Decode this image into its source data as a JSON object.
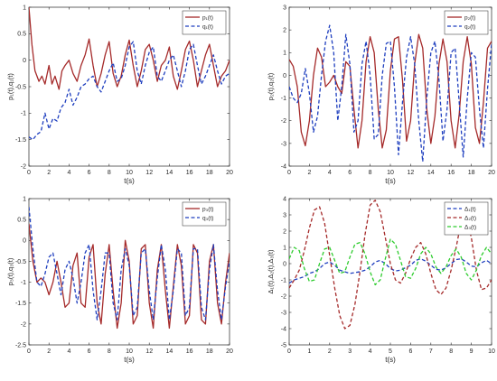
{
  "chart_data": [
    {
      "type": "line",
      "xlabel": "t(s)",
      "ylabel": "p₁(t),q₁(t)",
      "xlim": [
        0,
        20
      ],
      "ylim": [
        -2,
        1
      ],
      "xticks": [
        "0",
        "2",
        "4",
        "6",
        "8",
        "10",
        "12",
        "14",
        "16",
        "18",
        "20"
      ],
      "yticks": [
        "-2",
        "-1.5",
        "-1",
        "-0.5",
        "0",
        "0.5",
        "1"
      ],
      "legend_position": "top-right",
      "series": [
        {
          "name": "p₁(t)",
          "color": "#a52a2a",
          "dash": "solid",
          "x": [
            0,
            0.3,
            0.6,
            1,
            1.3,
            1.6,
            2,
            2.3,
            2.6,
            3,
            3.3,
            3.6,
            4,
            4.4,
            4.8,
            5.2,
            5.6,
            6,
            6.4,
            6.8,
            7.2,
            7.6,
            8,
            8.4,
            8.8,
            9.2,
            9.6,
            10,
            10.4,
            10.8,
            11.2,
            11.6,
            12,
            12.4,
            12.8,
            13.2,
            13.6,
            14,
            14.4,
            14.8,
            15.2,
            15.6,
            16,
            16.4,
            16.8,
            17.2,
            17.6,
            18,
            18.4,
            18.8,
            19.2,
            19.6,
            20
          ],
          "y": [
            1.0,
            0.3,
            -0.2,
            -0.4,
            -0.3,
            -0.45,
            -0.1,
            -0.45,
            -0.3,
            -0.55,
            -0.2,
            -0.1,
            0.0,
            -0.25,
            -0.4,
            -0.1,
            0.1,
            0.4,
            -0.1,
            -0.5,
            -0.25,
            0.1,
            0.35,
            -0.25,
            -0.5,
            -0.3,
            0.1,
            0.38,
            -0.1,
            -0.5,
            -0.2,
            0.2,
            0.3,
            0.0,
            -0.4,
            -0.1,
            0.0,
            0.25,
            -0.3,
            -0.55,
            -0.2,
            0.2,
            0.36,
            0.0,
            -0.5,
            -0.2,
            0.1,
            0.3,
            -0.1,
            -0.5,
            -0.3,
            -0.2,
            0.0
          ]
        },
        {
          "name": "q₁(t)",
          "color": "#1f3fbf",
          "dash": "dashed",
          "x": [
            0,
            0.4,
            0.8,
            1.2,
            1.6,
            2,
            2.4,
            2.8,
            3.2,
            3.6,
            4,
            4.4,
            4.8,
            5.2,
            5.6,
            6,
            6.4,
            6.8,
            7.2,
            7.6,
            8,
            8.4,
            8.8,
            9.2,
            9.6,
            10,
            10.4,
            10.8,
            11.2,
            11.6,
            12,
            12.4,
            12.8,
            13.2,
            13.6,
            14,
            14.4,
            14.8,
            15.2,
            15.6,
            16,
            16.4,
            16.8,
            17.2,
            17.6,
            18,
            18.4,
            18.8,
            19.2,
            19.6,
            20
          ],
          "y": [
            -1.45,
            -1.5,
            -1.4,
            -1.35,
            -1.0,
            -1.3,
            -1.1,
            -1.15,
            -0.9,
            -0.8,
            -0.55,
            -0.85,
            -0.7,
            -0.5,
            -0.45,
            -0.35,
            -0.3,
            -0.5,
            -0.6,
            -0.4,
            -0.2,
            -0.05,
            -0.4,
            -0.35,
            -0.1,
            0.25,
            0.35,
            -0.2,
            -0.45,
            -0.1,
            0.15,
            0.25,
            -0.3,
            -0.4,
            -0.2,
            0.0,
            0.1,
            -0.2,
            -0.5,
            -0.2,
            0.2,
            0.3,
            -0.1,
            -0.45,
            -0.3,
            -0.1,
            0.1,
            -0.2,
            -0.45,
            -0.3,
            -0.25
          ]
        }
      ]
    },
    {
      "type": "line",
      "xlabel": "t(s)",
      "ylabel": "p₂(t),q₂(t)",
      "xlim": [
        0,
        20
      ],
      "ylim": [
        -4,
        3
      ],
      "xticks": [
        "0",
        "2",
        "4",
        "6",
        "8",
        "10",
        "12",
        "14",
        "16",
        "18",
        "20"
      ],
      "yticks": [
        "-4",
        "-3",
        "-2",
        "-1",
        "0",
        "1",
        "2",
        "3"
      ],
      "legend_position": "top-right",
      "series": [
        {
          "name": "p₂(t)",
          "color": "#a52a2a",
          "dash": "solid",
          "x": [
            0,
            0.4,
            0.8,
            1.2,
            1.6,
            2,
            2.4,
            2.8,
            3.2,
            3.6,
            4,
            4.4,
            4.8,
            5.2,
            5.6,
            6,
            6.4,
            6.8,
            7.2,
            7.6,
            8,
            8.4,
            8.8,
            9.2,
            9.6,
            10,
            10.4,
            10.8,
            11.2,
            11.6,
            12,
            12.4,
            12.8,
            13.2,
            13.6,
            14,
            14.4,
            14.8,
            15.2,
            15.6,
            16,
            16.4,
            16.8,
            17.2,
            17.6,
            18,
            18.4,
            18.8,
            19.2,
            19.6,
            20
          ],
          "y": [
            0.7,
            0.4,
            -0.5,
            -2.5,
            -3.1,
            -2.0,
            0.0,
            1.2,
            0.8,
            -0.5,
            -0.3,
            0.0,
            -0.5,
            -0.8,
            0.6,
            0.4,
            -1.5,
            -3.2,
            -2.0,
            0.6,
            1.7,
            1.0,
            -1.5,
            -3.2,
            -2.4,
            0.2,
            1.6,
            1.7,
            -0.2,
            -2.9,
            -2.0,
            0.5,
            1.8,
            1.2,
            -1.5,
            -3.0,
            -1.8,
            0.5,
            1.6,
            0.6,
            -2.0,
            -3.2,
            -1.7,
            0.6,
            1.7,
            0.5,
            -2.3,
            -3.0,
            -1.2,
            1.2,
            1.5
          ]
        },
        {
          "name": "q₂(t)",
          "color": "#1f3fbf",
          "dash": "dashed",
          "x": [
            0,
            0.4,
            0.8,
            1.2,
            1.6,
            2,
            2.4,
            2.8,
            3.2,
            3.6,
            4,
            4.4,
            4.8,
            5.2,
            5.6,
            6,
            6.4,
            6.8,
            7.2,
            7.6,
            8,
            8.4,
            8.8,
            9.2,
            9.6,
            10,
            10.4,
            10.8,
            11.2,
            11.6,
            12,
            12.4,
            12.8,
            13.2,
            13.6,
            14,
            14.4,
            14.8,
            15.2,
            15.6,
            16,
            16.4,
            16.8,
            17.2,
            17.6,
            18,
            18.4,
            18.8,
            19.2,
            19.6,
            20
          ],
          "y": [
            -0.5,
            -1.0,
            -1.2,
            -0.8,
            0.3,
            -0.8,
            -2.5,
            -1.8,
            0.0,
            1.5,
            2.2,
            1.0,
            -2.0,
            -0.5,
            1.8,
            0.5,
            -2.5,
            -2.0,
            0.5,
            1.5,
            0.0,
            -2.8,
            -2.6,
            0.0,
            1.4,
            1.5,
            -0.5,
            -3.5,
            -1.2,
            0.8,
            1.7,
            0.5,
            -2.0,
            -3.8,
            -1.0,
            1.0,
            1.5,
            -0.2,
            -2.9,
            -1.5,
            1.0,
            1.2,
            -1.2,
            -3.6,
            -1.0,
            1.0,
            0.8,
            -1.5,
            -3.2,
            -0.6,
            1.4
          ]
        }
      ]
    },
    {
      "type": "line",
      "xlabel": "t(s)",
      "ylabel": "p₃(t),q₃(t)",
      "xlim": [
        0,
        20
      ],
      "ylim": [
        -2.5,
        1
      ],
      "xticks": [
        "0",
        "2",
        "4",
        "6",
        "8",
        "10",
        "12",
        "14",
        "16",
        "18",
        "20"
      ],
      "yticks": [
        "-2.5",
        "-2",
        "-1.5",
        "-1",
        "-0.5",
        "0",
        "0.5",
        "1"
      ],
      "legend_position": "top-right",
      "series": [
        {
          "name": "p₃(t)",
          "color": "#a52a2a",
          "dash": "solid",
          "x": [
            0,
            0.4,
            0.8,
            1.2,
            1.6,
            2,
            2.4,
            2.8,
            3.2,
            3.6,
            4,
            4.4,
            4.8,
            5.2,
            5.6,
            6,
            6.4,
            6.8,
            7.2,
            7.6,
            8,
            8.4,
            8.8,
            9.2,
            9.6,
            10,
            10.4,
            10.8,
            11.2,
            11.6,
            12,
            12.4,
            12.8,
            13.2,
            13.6,
            14,
            14.4,
            14.8,
            15.2,
            15.6,
            16,
            16.4,
            16.8,
            17.2,
            17.6,
            18,
            18.4,
            18.8,
            19.2,
            19.6,
            20
          ],
          "y": [
            0.4,
            -0.5,
            -1.0,
            -0.9,
            -1.0,
            -1.3,
            -1.0,
            -0.5,
            -1.0,
            -1.6,
            -1.5,
            -0.6,
            -0.3,
            -1.5,
            -1.6,
            -0.4,
            -0.1,
            -1.5,
            -2.0,
            -0.8,
            -0.1,
            -1.2,
            -2.1,
            -1.5,
            0.0,
            -0.5,
            -2.0,
            -1.8,
            -0.2,
            -0.1,
            -1.5,
            -2.1,
            -0.7,
            -0.1,
            -1.2,
            -2.1,
            -1.1,
            -0.1,
            -0.6,
            -2.0,
            -1.8,
            -0.1,
            -0.3,
            -1.9,
            -2.0,
            -0.5,
            -0.1,
            -1.5,
            -2.0,
            -1.0,
            -0.3
          ]
        },
        {
          "name": "q₃(t)",
          "color": "#1f3fbf",
          "dash": "dashed",
          "x": [
            0,
            0.4,
            0.8,
            1.2,
            1.6,
            2,
            2.4,
            2.8,
            3.2,
            3.6,
            4,
            4.4,
            4.8,
            5.2,
            5.6,
            6,
            6.4,
            6.8,
            7.2,
            7.6,
            8,
            8.4,
            8.8,
            9.2,
            9.6,
            10,
            10.4,
            10.8,
            11.2,
            11.6,
            12,
            12.4,
            12.8,
            13.2,
            13.6,
            14,
            14.4,
            14.8,
            15.2,
            15.6,
            16,
            16.4,
            16.8,
            17.2,
            17.6,
            18,
            18.4,
            18.8,
            19.2,
            19.6,
            20
          ],
          "y": [
            0.8,
            -0.2,
            -1.0,
            -1.1,
            -0.8,
            -0.4,
            -0.3,
            -0.8,
            -1.3,
            -0.7,
            -0.5,
            -0.9,
            -1.5,
            -1.0,
            -0.3,
            -0.1,
            -1.2,
            -1.9,
            -1.2,
            -0.3,
            -0.3,
            -1.5,
            -1.9,
            -0.7,
            -0.2,
            -0.6,
            -1.8,
            -1.6,
            -0.3,
            -0.2,
            -1.2,
            -1.9,
            -0.9,
            -0.1,
            -0.7,
            -1.9,
            -1.2,
            -0.2,
            -0.3,
            -1.8,
            -1.6,
            -0.2,
            -0.2,
            -1.6,
            -1.9,
            -0.7,
            -0.1,
            -1.2,
            -1.9,
            -1.1,
            -0.5
          ]
        }
      ]
    },
    {
      "type": "line",
      "xlabel": "t(s)",
      "ylabel": "Δ₁(t),Δ₂(t),Δ₃(t)",
      "xlim": [
        0,
        10
      ],
      "ylim": [
        -5,
        4
      ],
      "xticks": [
        "0",
        "1",
        "2",
        "3",
        "4",
        "5",
        "6",
        "7",
        "8",
        "9",
        "10"
      ],
      "yticks": [
        "-5",
        "-4",
        "-3",
        "-2",
        "-1",
        "0",
        "1",
        "2",
        "3",
        "4"
      ],
      "legend_position": "top-right",
      "series": [
        {
          "name": "Δ₁(t)",
          "color": "#1f3fbf",
          "dash": "dashed",
          "x": [
            0,
            0.25,
            0.5,
            0.75,
            1,
            1.25,
            1.5,
            1.75,
            2,
            2.25,
            2.5,
            2.75,
            3,
            3.25,
            3.5,
            3.75,
            4,
            4.25,
            4.5,
            4.75,
            5,
            5.25,
            5.5,
            5.75,
            6,
            6.25,
            6.5,
            6.75,
            7,
            7.25,
            7.5,
            7.75,
            8,
            8.25,
            8.5,
            8.75,
            9,
            9.25,
            9.5,
            9.75,
            10
          ],
          "y": [
            -1.2,
            -1.0,
            -0.9,
            -0.8,
            -0.6,
            -0.5,
            -0.3,
            0.0,
            0.1,
            -0.1,
            -0.4,
            -0.5,
            -0.6,
            -0.55,
            -0.5,
            -0.4,
            -0.2,
            0.1,
            0.2,
            0.0,
            -0.3,
            -0.45,
            -0.4,
            -0.25,
            -0.1,
            0.2,
            0.3,
            0.15,
            -0.1,
            -0.35,
            -0.4,
            -0.25,
            0.0,
            0.25,
            0.3,
            0.1,
            -0.15,
            -0.2,
            0.05,
            0.2,
            0.0
          ]
        },
        {
          "name": "Δ₂(t)",
          "color": "#a52a2a",
          "dash": "dashed",
          "x": [
            0,
            0.25,
            0.5,
            0.75,
            1,
            1.25,
            1.5,
            1.75,
            2,
            2.25,
            2.5,
            2.75,
            3,
            3.25,
            3.5,
            3.75,
            4,
            4.25,
            4.5,
            4.75,
            5,
            5.25,
            5.5,
            5.75,
            6,
            6.25,
            6.5,
            6.75,
            7,
            7.25,
            7.5,
            7.75,
            8,
            8.25,
            8.5,
            8.75,
            9,
            9.25,
            9.5,
            9.75,
            10
          ],
          "y": [
            -1.5,
            -1.0,
            -0.4,
            0.8,
            2.2,
            3.3,
            3.5,
            2.5,
            0.5,
            -1.5,
            -3.2,
            -4.0,
            -3.8,
            -2.5,
            -0.5,
            1.8,
            3.6,
            3.9,
            3.2,
            1.6,
            0.0,
            -1.0,
            -1.2,
            -0.6,
            0.3,
            1.0,
            1.3,
            0.6,
            -0.6,
            -1.6,
            -1.9,
            -1.5,
            -0.4,
            1.0,
            2.6,
            2.9,
            1.6,
            -0.4,
            -1.6,
            -1.5,
            -1.0
          ]
        },
        {
          "name": "Δ₃(t)",
          "color": "#2ecc2e",
          "dash": "dashed",
          "x": [
            0,
            0.25,
            0.5,
            0.75,
            1,
            1.25,
            1.5,
            1.75,
            2,
            2.25,
            2.5,
            2.75,
            3,
            3.25,
            3.5,
            3.75,
            4,
            4.25,
            4.5,
            4.75,
            5,
            5.25,
            5.5,
            5.75,
            6,
            6.25,
            6.5,
            6.75,
            7,
            7.25,
            7.5,
            7.75,
            8,
            8.25,
            8.5,
            8.75,
            9,
            9.25,
            9.5,
            9.75,
            10
          ],
          "y": [
            0.3,
            1.0,
            0.8,
            -0.3,
            -1.1,
            -1.0,
            0.0,
            0.9,
            1.0,
            0.2,
            -0.6,
            -0.5,
            0.4,
            1.2,
            1.3,
            0.6,
            -0.5,
            -1.3,
            -1.0,
            0.3,
            1.5,
            1.2,
            0.2,
            -0.8,
            -0.9,
            -0.3,
            0.6,
            1.0,
            0.6,
            -0.2,
            -0.6,
            -0.2,
            0.5,
            0.9,
            0.4,
            -0.6,
            -1.0,
            -0.4,
            0.5,
            1.0,
            0.6
          ]
        }
      ]
    }
  ]
}
